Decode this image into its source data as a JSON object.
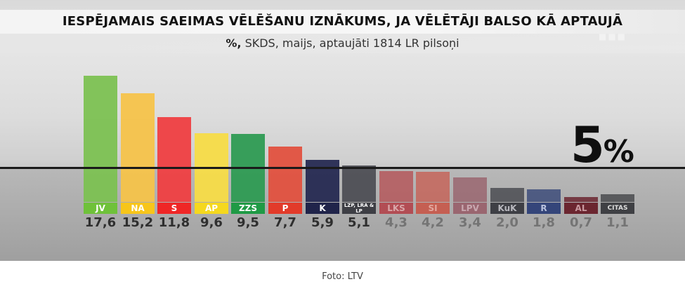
{
  "title": "IESPĒJAMAIS SAEIMAS VĒLĒŠANU IZNĀKUMS, JA VĒLĒTĀJI BALSO KĀ APTAUJĀ",
  "dots": "■■■",
  "subtitle": {
    "bold": "%,",
    "rest": " SKDS, maijs, aptaujāti 1814 LR pilsoņi"
  },
  "threshold": {
    "value": 5,
    "label_number": "5",
    "label_unit": "%"
  },
  "credit": "Foto: LTV",
  "chart_data": {
    "type": "bar",
    "title": "IESPĒJAMAIS SAEIMAS VĒLĒŠANU IZNĀKUMS, JA VĒLĒTĀJI BALSO KĀ APTAUJĀ",
    "subtitle": "%, SKDS, maijs, aptaujāti 1814 LR pilsoņi",
    "unit": "%",
    "threshold": 5,
    "categories": [
      "JV",
      "NA",
      "S",
      "AP",
      "ZZS",
      "P",
      "K",
      "LZP, LRA & LP",
      "LKS",
      "SI",
      "LPV",
      "KuK",
      "R",
      "AL",
      "CITAS"
    ],
    "values": [
      17.6,
      15.2,
      11.8,
      9.6,
      9.5,
      7.7,
      5.9,
      5.1,
      4.3,
      4.2,
      3.4,
      2.0,
      1.8,
      0.7,
      1.1
    ],
    "value_labels": [
      "17,6",
      "15,2",
      "11,8",
      "9,6",
      "9,5",
      "7,7",
      "5,9",
      "5,1",
      "4,3",
      "4,2",
      "3,4",
      "2,0",
      "1,8",
      "0,7",
      "1,1"
    ],
    "colors": [
      "#7cc152",
      "#f5c34a",
      "#ef3f42",
      "#f7dc47",
      "#2e9b53",
      "#e2513f",
      "#262a52",
      "#4e4f55",
      "#b5585c",
      "#c6655a",
      "#9a6670",
      "#4b4c52",
      "#3d4c7a",
      "#6b2630",
      "#4a4b4f"
    ],
    "label_colors": [
      "#6fc13a",
      "#f7c51a",
      "#ef2626",
      "#f5d81e",
      "#1f9a45",
      "#e23b2a",
      "#20244a",
      "#3d3e44",
      "#b24d54",
      "#c55f52",
      "#9a6670",
      "#3e3f45",
      "#34457a",
      "#6b2630",
      "#3f4044"
    ],
    "label_text_colors": [
      "#ffffff",
      "#ffffff",
      "#ffffff",
      "#ffffff",
      "#ffffff",
      "#ffffff",
      "#ffffff",
      "#ffffff",
      "#d9a7a9",
      "#e3a89f",
      "#c9a8b0",
      "#b8b8be",
      "#b9c2de",
      "#c99aa1",
      "#dedede"
    ],
    "value_colors": [
      "#2f2f2f",
      "#2f2f2f",
      "#2f2f2f",
      "#2f2f2f",
      "#2f2f2f",
      "#2f2f2f",
      "#2f2f2f",
      "#2f2f2f",
      "#747474",
      "#747474",
      "#747474",
      "#747474",
      "#747474",
      "#747474",
      "#747474"
    ],
    "ylim": [
      0,
      17.6
    ],
    "grid": false,
    "legend": "none"
  }
}
